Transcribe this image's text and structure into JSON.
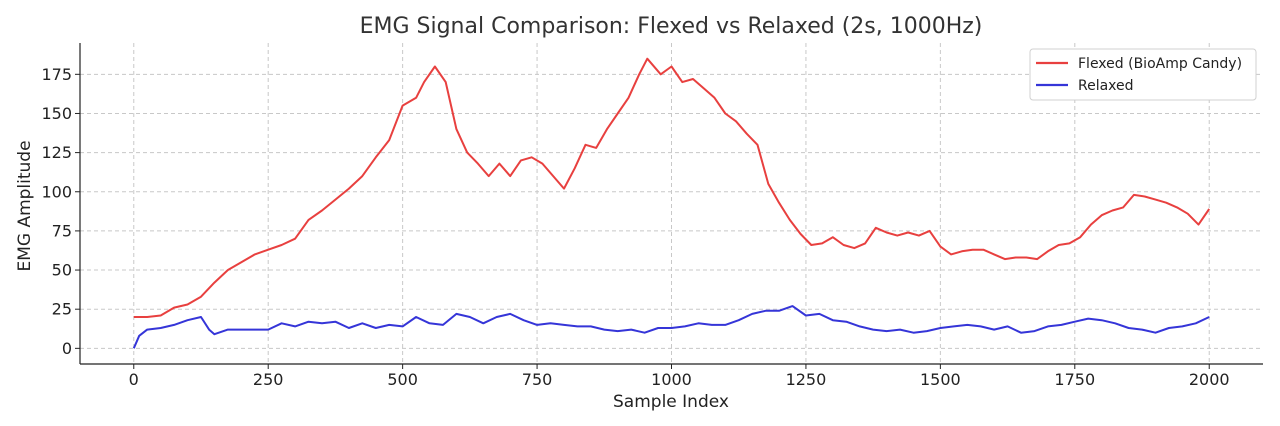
{
  "chart_data": {
    "type": "line",
    "title": "EMG Signal Comparison: Flexed vs Relaxed (2s, 1000Hz)",
    "xlabel": "Sample Index",
    "ylabel": "EMG Amplitude",
    "xlim": [
      -100,
      2100
    ],
    "ylim": [
      -10,
      195
    ],
    "xticks": [
      0,
      250,
      500,
      750,
      1000,
      1250,
      1500,
      1750,
      2000
    ],
    "yticks": [
      0,
      25,
      50,
      75,
      100,
      125,
      150,
      175
    ],
    "grid": true,
    "legend_position": "top-right",
    "series": [
      {
        "name": "Flexed (BioAmp Candy)",
        "color": "#e8403f",
        "x": [
          0,
          25,
          50,
          75,
          100,
          125,
          150,
          175,
          200,
          225,
          250,
          275,
          300,
          325,
          350,
          375,
          400,
          425,
          450,
          475,
          500,
          525,
          540,
          560,
          580,
          600,
          620,
          640,
          660,
          680,
          700,
          720,
          740,
          760,
          780,
          800,
          820,
          840,
          860,
          880,
          900,
          920,
          940,
          955,
          980,
          1000,
          1020,
          1040,
          1060,
          1080,
          1100,
          1120,
          1140,
          1160,
          1180,
          1200,
          1220,
          1240,
          1260,
          1280,
          1300,
          1320,
          1340,
          1360,
          1380,
          1400,
          1420,
          1440,
          1460,
          1480,
          1500,
          1520,
          1540,
          1560,
          1580,
          1600,
          1620,
          1640,
          1660,
          1680,
          1700,
          1720,
          1740,
          1760,
          1780,
          1800,
          1820,
          1840,
          1860,
          1880,
          1900,
          1920,
          1940,
          1960,
          1980,
          2000
        ],
        "y": [
          20,
          20,
          21,
          26,
          28,
          33,
          42,
          50,
          55,
          60,
          63,
          66,
          70,
          82,
          88,
          95,
          102,
          110,
          122,
          133,
          155,
          160,
          170,
          180,
          170,
          140,
          125,
          118,
          110,
          118,
          110,
          120,
          122,
          118,
          110,
          102,
          115,
          130,
          128,
          140,
          150,
          160,
          175,
          185,
          175,
          180,
          170,
          172,
          166,
          160,
          150,
          145,
          137,
          130,
          105,
          93,
          82,
          73,
          66,
          67,
          71,
          66,
          64,
          67,
          77,
          74,
          72,
          74,
          72,
          75,
          65,
          60,
          62,
          63,
          63,
          60,
          57,
          58,
          58,
          57,
          62,
          66,
          67,
          71,
          79,
          85,
          88,
          90,
          98,
          97,
          95,
          93,
          90,
          86,
          79,
          89
        ]
      },
      {
        "name": "Relaxed",
        "color": "#3535d8",
        "x": [
          0,
          10,
          25,
          50,
          75,
          100,
          125,
          140,
          150,
          175,
          200,
          225,
          250,
          275,
          300,
          325,
          350,
          375,
          400,
          425,
          450,
          475,
          500,
          525,
          550,
          575,
          600,
          625,
          650,
          675,
          700,
          725,
          750,
          775,
          800,
          825,
          850,
          875,
          900,
          925,
          950,
          975,
          1000,
          1025,
          1050,
          1075,
          1100,
          1125,
          1150,
          1175,
          1200,
          1225,
          1250,
          1275,
          1300,
          1325,
          1350,
          1375,
          1400,
          1425,
          1450,
          1475,
          1500,
          1525,
          1550,
          1575,
          1600,
          1625,
          1650,
          1675,
          1700,
          1725,
          1750,
          1775,
          1800,
          1825,
          1850,
          1875,
          1900,
          1925,
          1950,
          1975,
          2000
        ],
        "y": [
          0,
          8,
          12,
          13,
          15,
          18,
          20,
          12,
          9,
          12,
          12,
          12,
          12,
          16,
          14,
          17,
          16,
          17,
          13,
          16,
          13,
          15,
          14,
          20,
          16,
          15,
          22,
          20,
          16,
          20,
          22,
          18,
          15,
          16,
          15,
          14,
          14,
          12,
          11,
          12,
          10,
          13,
          13,
          14,
          16,
          15,
          15,
          18,
          22,
          24,
          24,
          27,
          21,
          22,
          18,
          17,
          14,
          12,
          11,
          12,
          10,
          11,
          13,
          14,
          15,
          14,
          12,
          14,
          10,
          11,
          14,
          15,
          17,
          19,
          18,
          16,
          13,
          12,
          10,
          13,
          14,
          16,
          20
        ]
      }
    ]
  }
}
